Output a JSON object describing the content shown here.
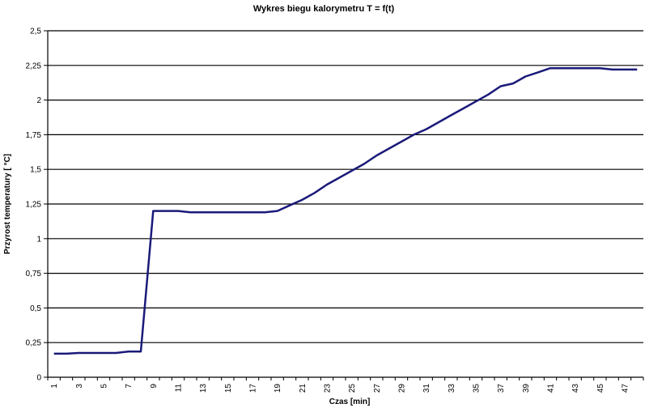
{
  "chart_data": {
    "type": "line",
    "title": "Wykres biegu kalorymetru T = f(t)",
    "xlabel": "Czas  [min]",
    "ylabel": "Przyrost temperatury [  °C]",
    "ylim": [
      0,
      2.5
    ],
    "y_ticks": [
      "0",
      "0,25",
      "0,5",
      "0,75",
      "1",
      "1,25",
      "1,5",
      "1,75",
      "2",
      "2,25",
      "2,5"
    ],
    "x_range": [
      1,
      48
    ],
    "x_tick_labels": [
      "1",
      "3",
      "5",
      "7",
      "9",
      "11",
      "13",
      "15",
      "17",
      "19",
      "21",
      "23",
      "25",
      "27",
      "29",
      "31",
      "33",
      "35",
      "37",
      "39",
      "41",
      "43",
      "45",
      "47"
    ],
    "grid": "horizontal major lines",
    "series": [
      {
        "x": [
          1,
          2,
          3,
          4,
          5,
          6,
          7,
          8,
          9,
          10,
          11,
          12,
          13,
          14,
          15,
          16,
          17,
          18,
          19,
          20,
          21,
          22,
          23,
          24,
          25,
          26,
          27,
          28,
          29,
          30,
          31,
          32,
          33,
          34,
          35,
          36,
          37,
          38,
          39,
          40,
          41,
          42,
          43,
          44,
          45,
          46,
          47,
          48
        ],
        "values": [
          0.17,
          0.17,
          0.175,
          0.175,
          0.175,
          0.175,
          0.185,
          0.185,
          1.2,
          1.2,
          1.2,
          1.19,
          1.19,
          1.19,
          1.19,
          1.19,
          1.19,
          1.19,
          1.2,
          1.24,
          1.28,
          1.33,
          1.39,
          1.44,
          1.49,
          1.54,
          1.6,
          1.65,
          1.7,
          1.75,
          1.79,
          1.84,
          1.89,
          1.94,
          1.99,
          2.04,
          2.1,
          2.12,
          2.17,
          2.2,
          2.23,
          2.23,
          2.23,
          2.23,
          2.23,
          2.22,
          2.22,
          2.22
        ]
      }
    ],
    "line_color": "#1a1a7a"
  }
}
